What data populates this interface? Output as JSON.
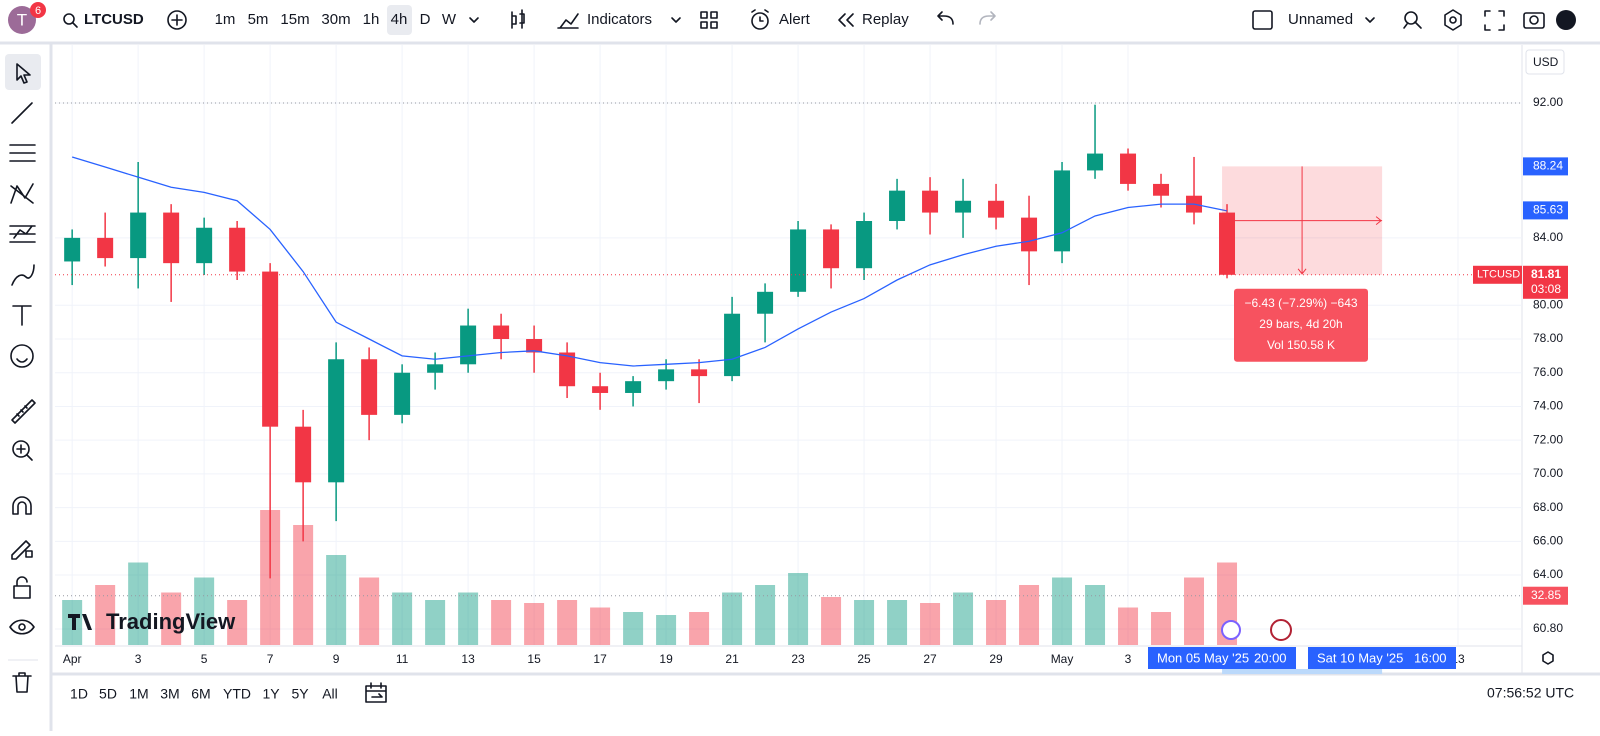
{
  "toolbar": {
    "avatar": "T",
    "badge": "6",
    "symbol": "LTCUSD",
    "intervals": [
      "1m",
      "5m",
      "15m",
      "30m",
      "1h",
      "4h",
      "D",
      "W"
    ],
    "indicators": "Indicators",
    "alert": "Alert",
    "replay": "Replay",
    "layout_name": "Unnamed"
  },
  "chart_data": {
    "type": "candlestick",
    "currency": "USD",
    "watermark": "TradingView",
    "x": [
      0,
      1,
      2,
      3,
      4,
      5,
      6,
      7,
      8,
      9,
      10,
      11,
      12,
      13,
      14,
      15,
      16,
      17,
      18,
      19,
      20,
      21,
      22,
      23,
      24,
      25,
      26,
      27,
      28,
      29,
      30,
      31,
      32,
      33,
      34,
      35
    ],
    "open": [
      82.6,
      84.0,
      82.8,
      85.5,
      82.5,
      84.6,
      82.0,
      72.8,
      69.5,
      76.8,
      73.5,
      76.0,
      76.5,
      78.8,
      78.0,
      77.2,
      75.2,
      74.8,
      75.5,
      76.2,
      75.8,
      79.5,
      80.8,
      84.5,
      82.2,
      85.0,
      86.8,
      85.5,
      86.2,
      85.2,
      83.2,
      88.0,
      89.0,
      87.2,
      86.5,
      85.5
    ],
    "high": [
      84.5,
      85.5,
      88.5,
      86.0,
      85.2,
      85.0,
      82.5,
      73.8,
      77.8,
      77.5,
      76.5,
      77.2,
      79.8,
      79.5,
      78.8,
      77.8,
      76.0,
      75.8,
      76.8,
      76.8,
      80.5,
      81.3,
      85.0,
      84.8,
      85.5,
      87.5,
      87.6,
      87.5,
      87.2,
      86.5,
      88.5,
      91.9,
      89.3,
      87.8,
      88.8,
      86.0
    ],
    "low": [
      81.2,
      82.3,
      81.0,
      80.2,
      81.8,
      81.5,
      63.8,
      66.0,
      67.2,
      72.0,
      73.0,
      75.0,
      76.0,
      76.8,
      76.0,
      74.5,
      73.8,
      74.0,
      75.0,
      74.2,
      75.5,
      77.8,
      80.5,
      81.0,
      81.5,
      84.5,
      84.2,
      84.0,
      84.5,
      81.2,
      82.5,
      87.5,
      86.8,
      85.8,
      84.8,
      81.6
    ],
    "close": [
      84.0,
      82.8,
      85.5,
      82.5,
      84.6,
      82.0,
      72.8,
      69.5,
      76.8,
      73.5,
      76.0,
      76.5,
      78.8,
      78.0,
      77.2,
      75.2,
      74.8,
      75.5,
      76.2,
      75.8,
      79.5,
      80.8,
      84.5,
      82.2,
      85.0,
      86.8,
      85.5,
      86.2,
      85.2,
      83.2,
      88.0,
      89.0,
      87.2,
      86.5,
      85.5,
      81.81
    ],
    "volume": [
      30,
      40,
      55,
      35,
      45,
      30,
      90,
      80,
      60,
      45,
      35,
      30,
      35,
      30,
      28,
      30,
      25,
      22,
      20,
      22,
      35,
      40,
      48,
      32,
      30,
      30,
      28,
      35,
      30,
      40,
      45,
      40,
      25,
      22,
      45,
      55
    ],
    "ma": {
      "color": "#2962ff",
      "values": [
        88.8,
        88.2,
        87.6,
        87.0,
        86.7,
        86.2,
        84.5,
        82.0,
        79.0,
        78.0,
        77.0,
        76.8,
        77.0,
        77.2,
        77.3,
        77.0,
        76.6,
        76.4,
        76.5,
        76.6,
        76.8,
        77.5,
        78.6,
        79.6,
        80.4,
        81.5,
        82.4,
        83.0,
        83.5,
        83.8,
        84.3,
        85.3,
        85.8,
        86.0,
        86.0,
        85.6
      ]
    },
    "up_color": "#089981",
    "down_color": "#f23645",
    "ylim": [
      59.85,
      95.44
    ],
    "yticks": [
      {
        "value": 92,
        "label": "92.00"
      },
      {
        "value": 84,
        "label": "84.00"
      },
      {
        "value": 80,
        "label": "80.00"
      },
      {
        "value": 78,
        "label": "78.00"
      },
      {
        "value": 76,
        "label": "76.00"
      },
      {
        "value": 74,
        "label": "74.00"
      },
      {
        "value": 72,
        "label": "72.00"
      },
      {
        "value": 70,
        "label": "70.00"
      },
      {
        "value": 68,
        "label": "68.00"
      },
      {
        "value": 66,
        "label": "66.00"
      },
      {
        "value": 64,
        "label": "64.00"
      },
      {
        "value": 60.8,
        "label": "60.80"
      }
    ],
    "xlim": [
      -0.52,
      43.94
    ],
    "xticks": [
      {
        "value": 0,
        "label": "Apr"
      },
      {
        "value": 2,
        "label": "3"
      },
      {
        "value": 4,
        "label": "5"
      },
      {
        "value": 6,
        "label": "7"
      },
      {
        "value": 8,
        "label": "9"
      },
      {
        "value": 10,
        "label": "11"
      },
      {
        "value": 12,
        "label": "13"
      },
      {
        "value": 14,
        "label": "15"
      },
      {
        "value": 16,
        "label": "17"
      },
      {
        "value": 18,
        "label": "19"
      },
      {
        "value": 20,
        "label": "21"
      },
      {
        "value": 22,
        "label": "23"
      },
      {
        "value": 24,
        "label": "25"
      },
      {
        "value": 26,
        "label": "27"
      },
      {
        "value": 28,
        "label": "29"
      },
      {
        "value": 30,
        "label": "May"
      },
      {
        "value": 32,
        "label": "3"
      },
      {
        "value": 42,
        "label": "13"
      }
    ],
    "high_line": 92,
    "last_price": 81.81,
    "last_label": "LTCUSD",
    "countdown": "03:08",
    "last_volume": 32.85,
    "price_labels": [
      88.24,
      85.63
    ],
    "measure": {
      "x_range": [
        34.85,
        39.7
      ],
      "price_range": [
        88.24,
        81.81
      ],
      "change_label": "−6.43 (−7.29%) −643",
      "bars_label": "29 bars, 4d 20h",
      "volume_label": "Vol 150.58 K",
      "start_date": "Mon 05 May '25",
      "start_time": "20:00",
      "end_date": "Sat 10 May '25",
      "end_time": "16:00"
    }
  },
  "bottom_bar": {
    "ranges": [
      "1D",
      "5D",
      "1M",
      "3M",
      "6M",
      "YTD",
      "1Y",
      "5Y",
      "All"
    ],
    "clock": "07:56:52 UTC"
  }
}
